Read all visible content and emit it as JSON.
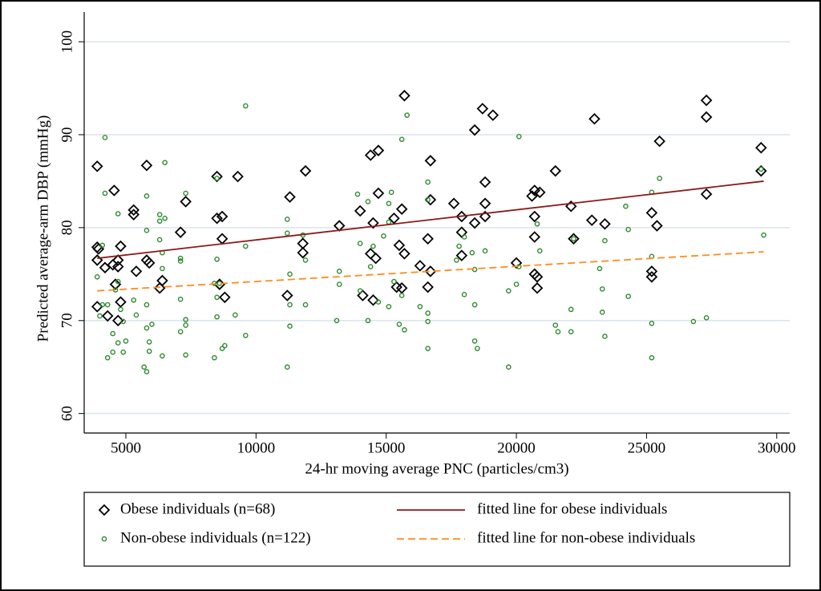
{
  "chart_data": {
    "type": "scatter",
    "y_label": "Predicted average-arm DBP (mmHg)",
    "x_label": "24-hr moving average PNC (particles/cm3)",
    "xlim": [
      3400,
      30500
    ],
    "ylim": [
      57.9,
      103.2
    ],
    "xticks": [
      5000,
      10000,
      15000,
      20000,
      25000,
      30000
    ],
    "yticks": [
      60,
      70,
      80,
      90,
      100
    ],
    "grid": true,
    "series": [
      {
        "name": "Obese individuals (n=68)",
        "marker": "diamond",
        "color": "#000000",
        "x": [
          3900,
          3900,
          3950,
          3900,
          3900,
          4200,
          4300,
          4550,
          4500,
          4600,
          4700,
          4700,
          4800,
          4800,
          4700,
          5300,
          5300,
          5400,
          5800,
          5800,
          5900,
          6300,
          6400,
          7100,
          7300,
          8500,
          8500,
          8700,
          8700,
          8600,
          8800,
          9300,
          11200,
          11300,
          11800,
          11800,
          11900,
          13200,
          14000,
          14100,
          14400,
          14400,
          14500,
          14600,
          14500,
          14700,
          14700,
          15300,
          15500,
          15600,
          15400,
          15700,
          15700,
          15600,
          16300,
          16700,
          16700,
          16600,
          16700,
          16600,
          17600,
          17900,
          17900,
          17900,
          18400,
          18400,
          18700,
          18800,
          18800,
          18800,
          19100,
          20000,
          20600,
          20700,
          20700,
          20700,
          20700,
          20800,
          20800,
          20900,
          21500,
          22100,
          22200,
          22900,
          23000,
          23400,
          25200,
          25200,
          25200,
          25400,
          25500,
          27300,
          27300,
          27300,
          29400,
          29400
        ],
        "values": [
          86.6,
          77.9,
          77.7,
          76.5,
          71.5,
          75.7,
          70.5,
          84.0,
          76.0,
          73.9,
          76.5,
          75.8,
          78.0,
          72.0,
          70.0,
          81.9,
          81.4,
          75.3,
          86.7,
          76.5,
          76.2,
          73.5,
          74.3,
          79.5,
          82.8,
          85.5,
          81.0,
          81.2,
          78.8,
          73.9,
          72.5,
          85.5,
          72.7,
          83.3,
          78.3,
          77.3,
          86.1,
          80.2,
          81.8,
          72.7,
          87.8,
          77.2,
          80.5,
          76.7,
          72.2,
          88.3,
          83.7,
          81.0,
          78.1,
          82.0,
          73.6,
          94.2,
          77.2,
          73.5,
          75.9,
          87.2,
          83.0,
          78.8,
          75.3,
          73.6,
          82.6,
          81.2,
          77.0,
          79.5,
          90.5,
          80.5,
          92.8,
          84.9,
          82.6,
          81.2,
          92.1,
          76.2,
          83.4,
          84.0,
          81.2,
          79.0,
          75.0,
          74.7,
          73.5,
          83.8,
          86.1,
          82.3,
          78.8,
          80.8,
          91.7,
          80.4,
          81.6,
          75.3,
          74.7,
          80.2,
          89.3,
          93.7,
          91.9,
          83.6,
          88.6,
          86.1
        ]
      },
      {
        "name": "Non-obese individuals (n=122)",
        "marker": "circle",
        "color": "#2e8b2e",
        "x": [
          3900,
          4000,
          4100,
          4100,
          4200,
          4200,
          4300,
          4300,
          4500,
          4500,
          4600,
          4700,
          4700,
          4700,
          4800,
          4900,
          4900,
          5000,
          5300,
          5400,
          5800,
          5800,
          5800,
          5800,
          5700,
          5800,
          5900,
          5900,
          6000,
          6300,
          6300,
          6300,
          6400,
          6400,
          6400,
          6500,
          6500,
          7100,
          7100,
          7100,
          7100,
          7300,
          7300,
          7300,
          7300,
          8400,
          8400,
          8500,
          8500,
          8500,
          8500,
          8600,
          8700,
          8800,
          9200,
          9600,
          9600,
          9600,
          11200,
          11200,
          11300,
          11300,
          11200,
          11300,
          11800,
          11900,
          11900,
          13200,
          13200,
          13100,
          13900,
          14000,
          14000,
          14300,
          14300,
          14500,
          14400,
          14700,
          14900,
          15200,
          15100,
          15100,
          15300,
          15100,
          15500,
          15600,
          15800,
          15700,
          15600,
          16300,
          16600,
          16600,
          16600,
          16600,
          16600,
          17700,
          17800,
          18000,
          18000,
          18300,
          18400,
          18400,
          18400,
          18500,
          18800,
          19700,
          19700,
          20100,
          20100,
          20000,
          20900,
          20800,
          21500,
          21600,
          22200,
          22100,
          22100,
          23200,
          23300,
          23300,
          23400,
          23400,
          24200,
          24300,
          24300,
          25200,
          25200,
          25200,
          25200,
          25500,
          26800,
          27300,
          29400,
          29500
        ],
        "values": [
          74.7,
          70.5,
          78.1,
          71.7,
          89.7,
          83.7,
          66.0,
          71.7,
          68.6,
          66.6,
          73.3,
          81.5,
          74.2,
          67.6,
          71.2,
          69.9,
          66.6,
          67.8,
          72.2,
          70.6,
          83.4,
          79.7,
          71.7,
          69.2,
          65.0,
          64.5,
          67.7,
          66.7,
          69.6,
          81.4,
          80.7,
          78.7,
          77.3,
          75.6,
          66.2,
          87.0,
          81.0,
          76.7,
          76.4,
          72.3,
          68.8,
          83.7,
          70.1,
          69.5,
          66.3,
          74.0,
          66.0,
          85.3,
          76.6,
          72.5,
          70.4,
          74.0,
          67.0,
          67.3,
          70.6,
          93.1,
          78.0,
          68.4,
          80.9,
          79.4,
          75.0,
          71.7,
          65.0,
          69.4,
          79.2,
          76.5,
          71.7,
          75.3,
          73.9,
          70.0,
          83.6,
          78.3,
          73.2,
          82.8,
          70.0,
          78.0,
          75.8,
          72.0,
          79.1,
          83.8,
          80.6,
          82.6,
          74.2,
          71.5,
          69.6,
          89.5,
          92.1,
          69.0,
          72.7,
          71.5,
          84.9,
          83.0,
          70.8,
          69.9,
          67.0,
          76.5,
          78.0,
          79.0,
          72.8,
          77.3,
          75.5,
          71.7,
          67.8,
          67.0,
          77.5,
          73.2,
          65.0,
          89.8,
          75.8,
          73.9,
          77.5,
          80.4,
          69.5,
          68.8,
          78.8,
          71.2,
          68.8,
          75.6,
          73.4,
          70.9,
          78.6,
          68.3,
          82.3,
          79.8,
          72.6,
          83.8,
          76.9,
          69.7,
          66.0,
          85.3,
          69.9,
          70.3,
          86.3,
          79.2
        ]
      },
      {
        "name": "fitted line for obese individuals",
        "line": "solid",
        "color": "#8b1a1a",
        "x": [
          3900,
          29500
        ],
        "values": [
          76.7,
          85.0
        ]
      },
      {
        "name": " fitted line for non-obese individuals",
        "line": "dashed",
        "color": "#ff8c1a",
        "x": [
          3900,
          29500
        ],
        "values": [
          73.2,
          77.4
        ]
      }
    ]
  }
}
